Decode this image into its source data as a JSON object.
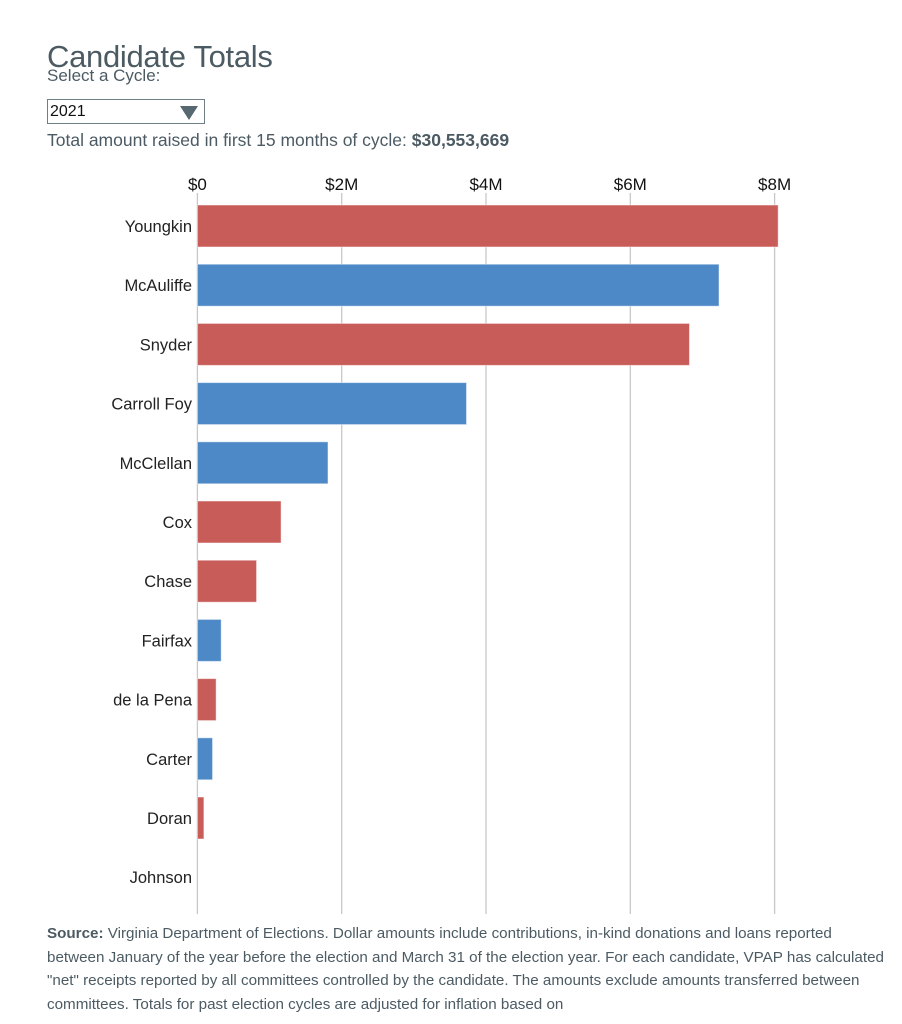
{
  "header": {
    "title": "Candidate Totals",
    "cycle_label": "Select a Cycle:",
    "cycle_selected": "2021",
    "total_prefix": "Total amount raised in first 15 months of cycle:",
    "total_value": "$30,553,669"
  },
  "colors": {
    "republican": "#c85c59",
    "democrat": "#4d88c7",
    "gridline": "#c8c8c8",
    "text": "#4c5b63",
    "label": "#222222"
  },
  "chart_data": {
    "type": "bar",
    "orientation": "horizontal",
    "title": "",
    "xlabel": "",
    "ylabel": "",
    "xlim": [
      0,
      8
    ],
    "x_unit": "millions USD",
    "x_ticks": [
      0,
      2,
      4,
      6,
      8
    ],
    "x_tick_labels": [
      "$0",
      "$2M",
      "$4M",
      "$6M",
      "$8M"
    ],
    "x_axis_position": "top",
    "grid": true,
    "legend": "none",
    "categories": [
      "Youngkin",
      "McAuliffe",
      "Snyder",
      "Carroll Foy",
      "McClellan",
      "Cox",
      "Chase",
      "Fairfax",
      "de la Pena",
      "Carter",
      "Doran",
      "Johnson"
    ],
    "values": [
      8.05,
      7.23,
      6.82,
      3.73,
      1.81,
      1.16,
      0.82,
      0.33,
      0.26,
      0.21,
      0.09,
      0
    ],
    "party": [
      "R",
      "D",
      "R",
      "D",
      "D",
      "R",
      "R",
      "D",
      "R",
      "D",
      "R",
      "R"
    ]
  },
  "footer": {
    "source_label": "Source:",
    "source_text": " Virginia Department of Elections. Dollar amounts include contributions, in-kind donations and loans reported between January of the year before the election and March 31 of the election year. For each candidate, VPAP has calculated \"net\" receipts reported by all committees controlled by the candidate. The amounts exclude amounts transferred between committees. Totals for past election cycles are adjusted for inflation based on"
  }
}
